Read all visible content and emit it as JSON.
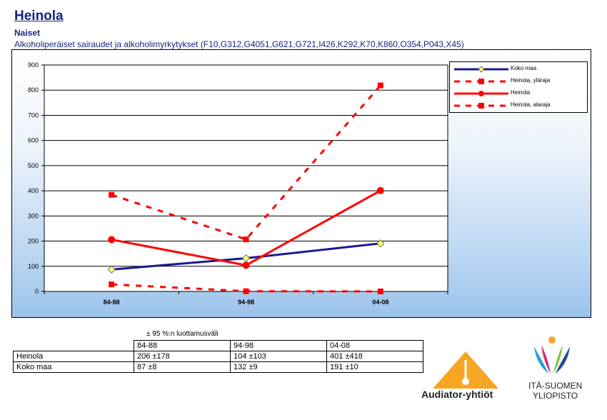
{
  "header": {
    "title": "Heinola",
    "subtitle": "Naiset",
    "description": "Alkoholiperäiset sairaudet ja alkoholimyrkytykset (F10,G312,G4051,G621,G721,I426,K292,K70,K860,O354,P043,X45)"
  },
  "chart_data": {
    "type": "line",
    "categories": [
      "84-88",
      "94-98",
      "04-08"
    ],
    "ylim": [
      0,
      900
    ],
    "yticks": [
      0,
      100,
      200,
      300,
      400,
      500,
      600,
      700,
      800,
      900
    ],
    "grid": true,
    "legend_position": "top-right",
    "series": [
      {
        "name": "Koko maa",
        "values": [
          87,
          132,
          191
        ],
        "color": "#1a1a8c",
        "style": "solid",
        "marker": "diamond",
        "marker_color": "#ffff66"
      },
      {
        "name": "Heinola, yläraja",
        "values": [
          384,
          207,
          819
        ],
        "color": "#ff0000",
        "style": "dashed",
        "marker": "square"
      },
      {
        "name": "Heinola",
        "values": [
          206,
          104,
          401
        ],
        "color": "#ff0000",
        "style": "solid",
        "marker": "circle"
      },
      {
        "name": "Heinola, alaraja",
        "values": [
          28,
          1,
          0
        ],
        "color": "#ff0000",
        "style": "dashed",
        "marker": "square"
      }
    ]
  },
  "ci_table": {
    "caption": "± 95 %:n luottamusväli",
    "columns": [
      "84-88",
      "94-98",
      "04-08"
    ],
    "rows": [
      {
        "label": "Heinola",
        "cells": [
          "206 ±178",
          "104 ±103",
          "401 ±418"
        ]
      },
      {
        "label": "Koko maa",
        "cells": [
          "87 ±8",
          "132 ±9",
          "191 ±10"
        ]
      }
    ]
  },
  "logos": {
    "audiator": "Audiator-yhtiöt",
    "uef_line1": "ITÄ-SUOMEN",
    "uef_line2": "YLIOPISTO"
  }
}
